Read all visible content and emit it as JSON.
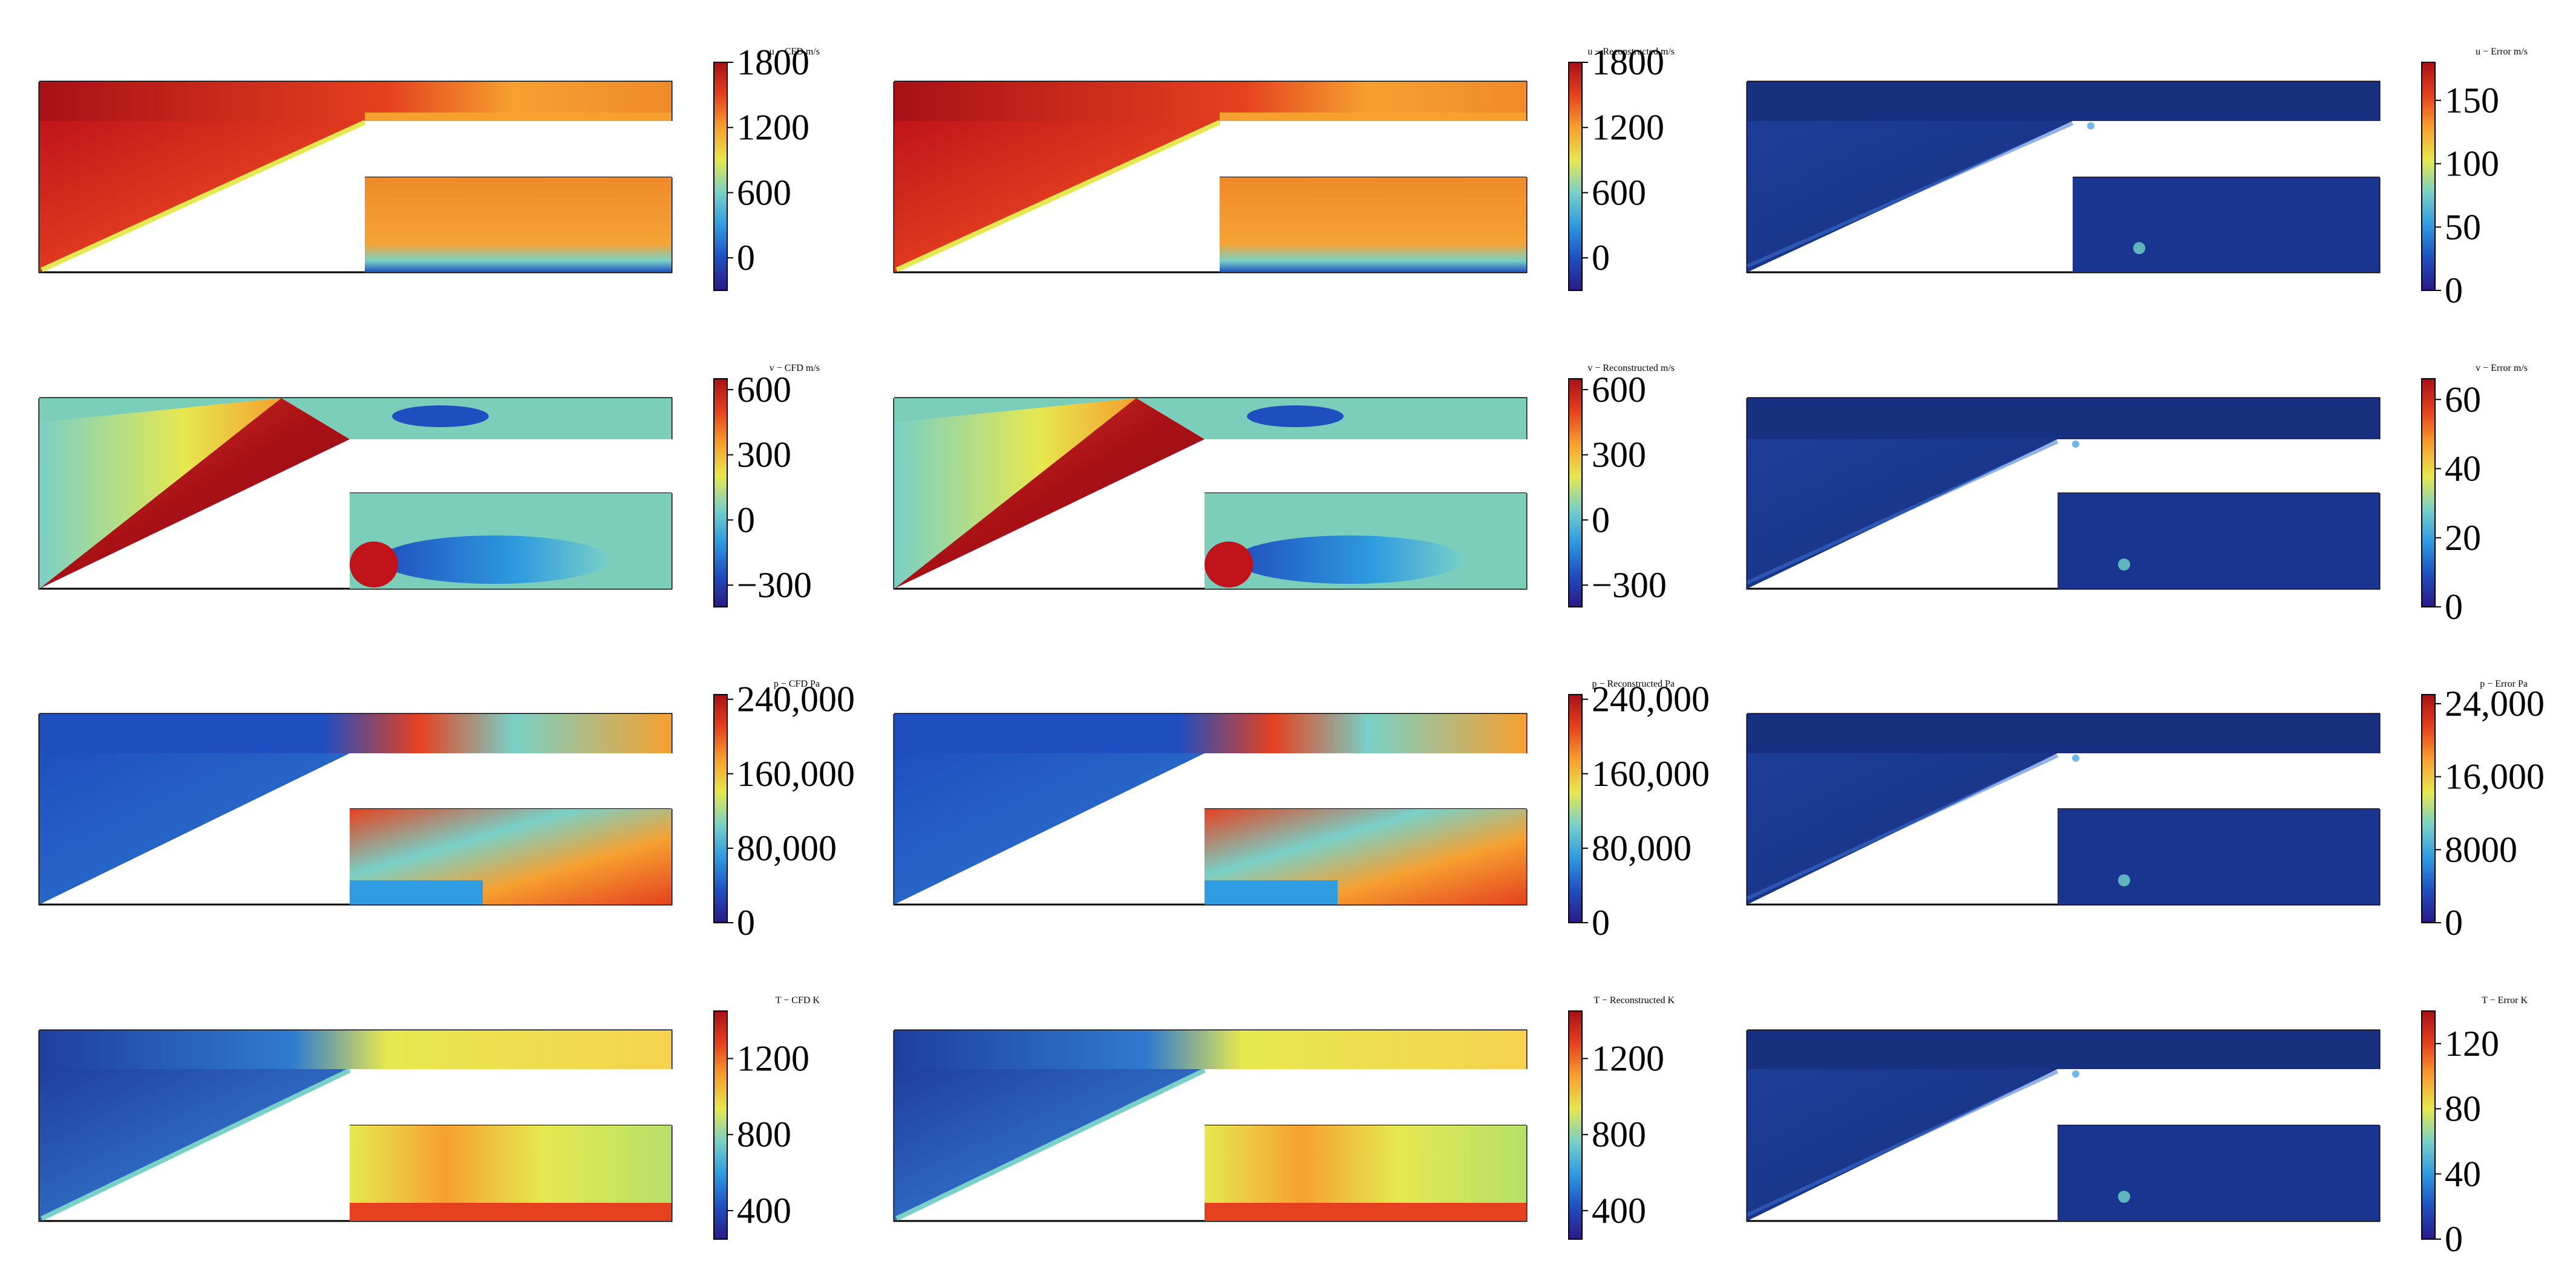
{
  "figure": {
    "columns": [
      "CFD",
      "Reconstructed",
      "Error"
    ],
    "rows": [
      "u",
      "v",
      "p",
      "T"
    ]
  },
  "chart_data": [
    {
      "type": "heatmap",
      "variable": "u",
      "source": "CFD",
      "title": "u − CFD",
      "unit": "m/s",
      "colorbar_range": [
        -300,
        1800
      ],
      "colorbar_ticks": [
        "1800",
        "1200",
        "600",
        "0"
      ],
      "tick_values": [
        1800,
        1200,
        600,
        0
      ]
    },
    {
      "type": "heatmap",
      "variable": "u",
      "source": "Reconstructed",
      "title": "u − Reconstructed",
      "unit": "m/s",
      "colorbar_range": [
        -300,
        1800
      ],
      "colorbar_ticks": [
        "1800",
        "1200",
        "600",
        "0"
      ],
      "tick_values": [
        1800,
        1200,
        600,
        0
      ]
    },
    {
      "type": "heatmap",
      "variable": "u",
      "source": "Error",
      "title": "u − Error",
      "unit": "m/s",
      "colorbar_range": [
        0,
        180
      ],
      "colorbar_ticks": [
        "150",
        "100",
        "50",
        "0"
      ],
      "tick_values": [
        150,
        100,
        50,
        0
      ]
    },
    {
      "type": "heatmap",
      "variable": "v",
      "source": "CFD",
      "title": "v − CFD",
      "unit": "m/s",
      "colorbar_range": [
        -400,
        650
      ],
      "colorbar_ticks": [
        "600",
        "300",
        "0",
        "−300"
      ],
      "tick_values": [
        600,
        300,
        0,
        -300
      ]
    },
    {
      "type": "heatmap",
      "variable": "v",
      "source": "Reconstructed",
      "title": "v − Reconstructed",
      "unit": "m/s",
      "colorbar_range": [
        -400,
        650
      ],
      "colorbar_ticks": [
        "600",
        "300",
        "0",
        "−300"
      ],
      "tick_values": [
        600,
        300,
        0,
        -300
      ]
    },
    {
      "type": "heatmap",
      "variable": "v",
      "source": "Error",
      "title": "v − Error",
      "unit": "m/s",
      "colorbar_range": [
        0,
        66
      ],
      "colorbar_ticks": [
        "60",
        "40",
        "20",
        "0"
      ],
      "tick_values": [
        60,
        40,
        20,
        0
      ]
    },
    {
      "type": "heatmap",
      "variable": "p",
      "source": "CFD",
      "title": "p − CFD",
      "unit": "Pa",
      "colorbar_range": [
        0,
        245000
      ],
      "colorbar_ticks": [
        "240,000",
        "160,000",
        "80,000",
        "0"
      ],
      "tick_values": [
        240000,
        160000,
        80000,
        0
      ]
    },
    {
      "type": "heatmap",
      "variable": "p",
      "source": "Reconstructed",
      "title": "p − Reconstructed",
      "unit": "Pa",
      "colorbar_range": [
        0,
        245000
      ],
      "colorbar_ticks": [
        "240,000",
        "160,000",
        "80,000",
        "0"
      ],
      "tick_values": [
        240000,
        160000,
        80000,
        0
      ]
    },
    {
      "type": "heatmap",
      "variable": "p",
      "source": "Error",
      "title": "p − Error",
      "unit": "Pa",
      "colorbar_range": [
        0,
        25000
      ],
      "colorbar_ticks": [
        "24,000",
        "16,000",
        "8000",
        "0"
      ],
      "tick_values": [
        24000,
        16000,
        8000,
        0
      ]
    },
    {
      "type": "heatmap",
      "variable": "T",
      "source": "CFD",
      "title": "T − CFD",
      "unit": "K",
      "colorbar_range": [
        250,
        1450
      ],
      "colorbar_ticks": [
        "1200",
        "800",
        "400"
      ],
      "tick_values": [
        1200,
        800,
        400
      ]
    },
    {
      "type": "heatmap",
      "variable": "T",
      "source": "Reconstructed",
      "title": "T − Reconstructed",
      "unit": "K",
      "colorbar_range": [
        250,
        1450
      ],
      "colorbar_ticks": [
        "1200",
        "800",
        "400"
      ],
      "tick_values": [
        1200,
        800,
        400
      ]
    },
    {
      "type": "heatmap",
      "variable": "T",
      "source": "Error",
      "title": "T − Error",
      "unit": "K",
      "colorbar_range": [
        0,
        140
      ],
      "colorbar_ticks": [
        "120",
        "80",
        "40",
        "0"
      ],
      "tick_values": [
        120,
        80,
        40,
        0
      ]
    }
  ],
  "colormap": [
    "#2a1a86",
    "#1f4fbf",
    "#2f9be0",
    "#79d0c7",
    "#e6e84f",
    "#f6a02f",
    "#e5411f",
    "#a81016"
  ]
}
